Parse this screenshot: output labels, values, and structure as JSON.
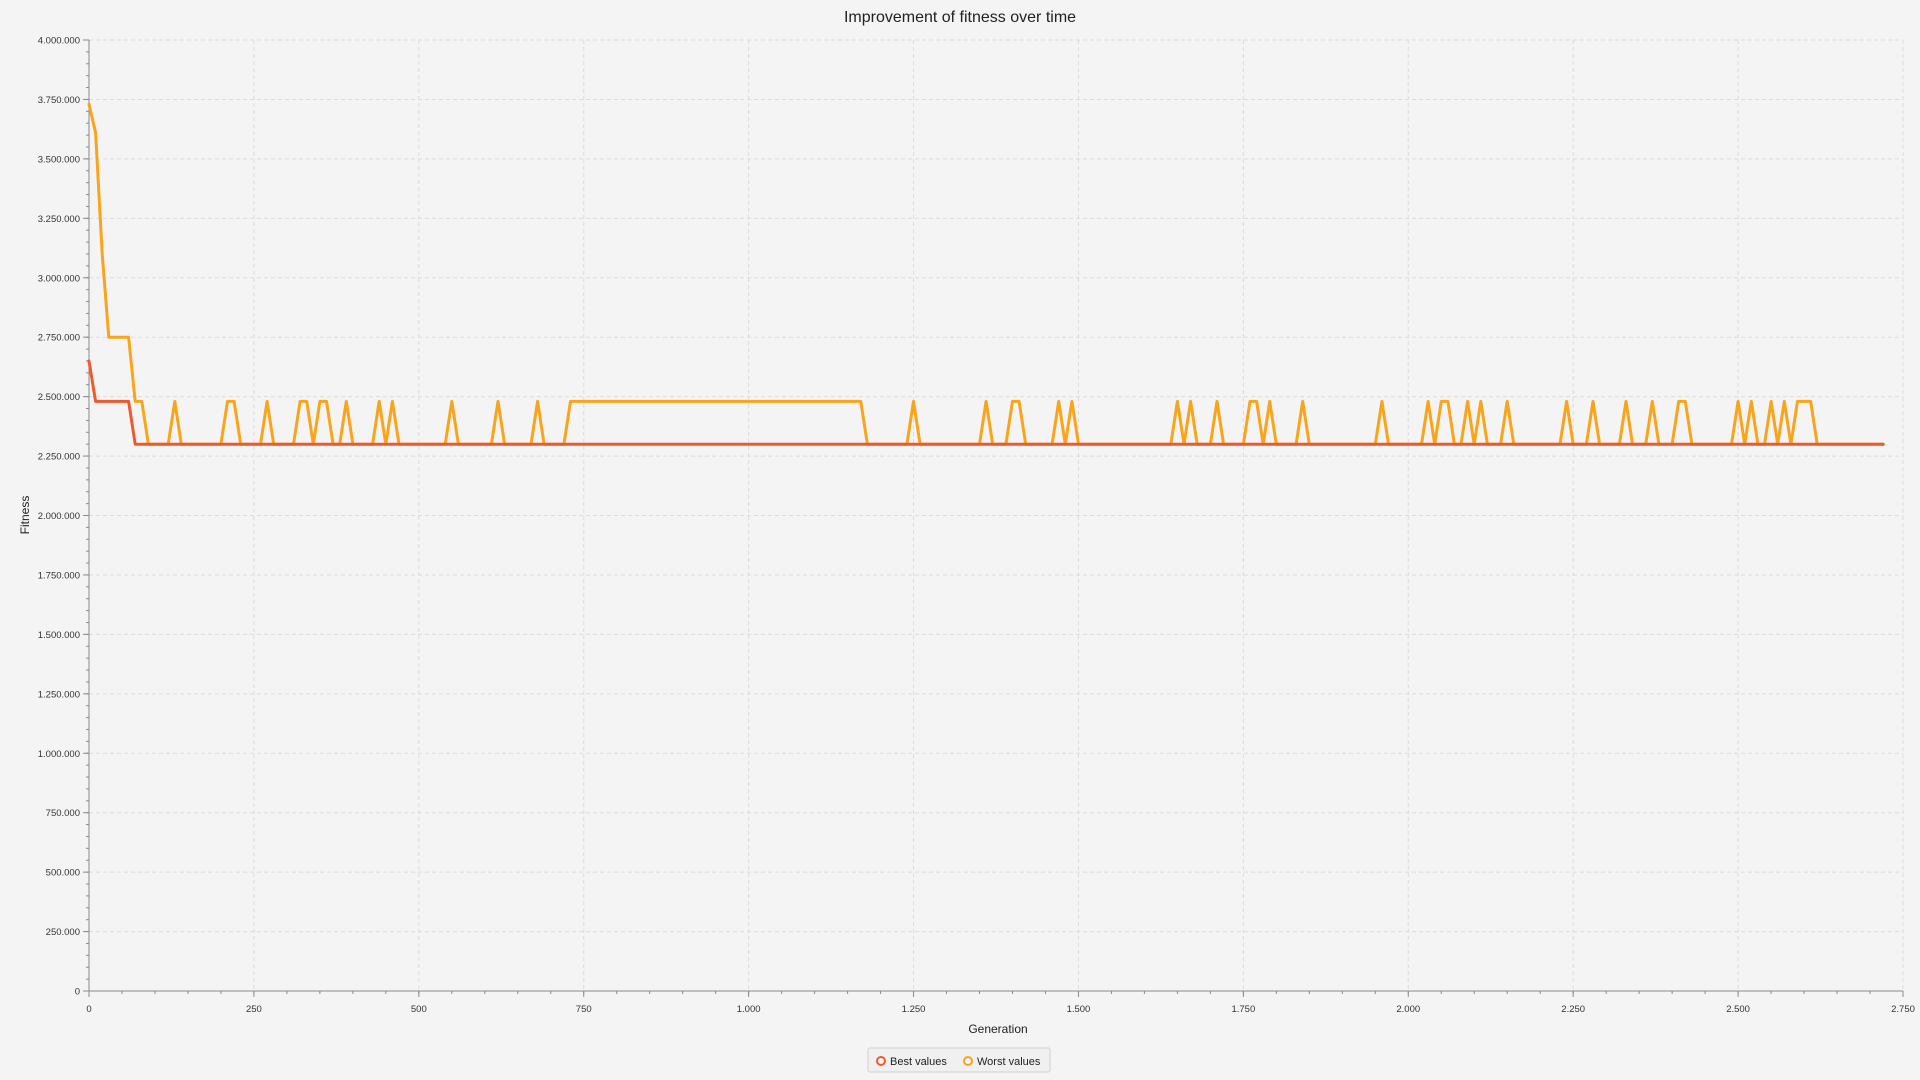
{
  "chart_data": {
    "type": "line",
    "title": "Improvement of fitness over time",
    "xlabel": "Generation",
    "ylabel": "Fitness",
    "xlim": [
      0,
      2750
    ],
    "ylim": [
      0,
      4000000
    ],
    "x_ticks": [
      "0",
      "250",
      "500",
      "750",
      "1.000",
      "1.250",
      "1.500",
      "1.750",
      "2.000",
      "2.250",
      "2.500",
      "2.750"
    ],
    "y_ticks": [
      "0",
      "250.000",
      "500.000",
      "750.000",
      "1.000.000",
      "1.250.000",
      "1.500.000",
      "1.750.000",
      "2.000.000",
      "2.250.000",
      "2.500.000",
      "2.750.000",
      "3.000.000",
      "3.250.000",
      "3.500.000",
      "3.750.000",
      "4.000.000"
    ],
    "grid": true,
    "legend_position": "bottom",
    "series": [
      {
        "name": "Best values",
        "color": "#ee5a2f",
        "x": [
          0,
          10,
          60,
          70,
          2720
        ],
        "y": [
          2650000,
          2480000,
          2480000,
          2300000,
          2300000
        ]
      },
      {
        "name": "Worst values",
        "color": "#f8a51c",
        "points": [
          [
            0,
            3730000
          ],
          [
            10,
            3610000
          ],
          [
            20,
            3100000
          ],
          [
            30,
            2750000
          ],
          [
            60,
            2750000
          ],
          [
            70,
            2480000
          ],
          [
            80,
            2480000
          ],
          [
            90,
            2300000
          ],
          [
            120,
            2300000
          ],
          [
            130,
            2480000
          ],
          [
            140,
            2300000
          ],
          [
            200,
            2300000
          ],
          [
            210,
            2480000
          ],
          [
            220,
            2480000
          ],
          [
            230,
            2300000
          ],
          [
            260,
            2300000
          ],
          [
            270,
            2480000
          ],
          [
            280,
            2300000
          ],
          [
            310,
            2300000
          ],
          [
            320,
            2480000
          ],
          [
            330,
            2480000
          ],
          [
            340,
            2300000
          ],
          [
            350,
            2480000
          ],
          [
            360,
            2480000
          ],
          [
            370,
            2300000
          ],
          [
            380,
            2300000
          ],
          [
            390,
            2480000
          ],
          [
            400,
            2300000
          ],
          [
            430,
            2300000
          ],
          [
            440,
            2480000
          ],
          [
            450,
            2300000
          ],
          [
            460,
            2480000
          ],
          [
            470,
            2300000
          ],
          [
            540,
            2300000
          ],
          [
            550,
            2480000
          ],
          [
            560,
            2300000
          ],
          [
            610,
            2300000
          ],
          [
            620,
            2480000
          ],
          [
            630,
            2300000
          ],
          [
            670,
            2300000
          ],
          [
            680,
            2480000
          ],
          [
            690,
            2300000
          ],
          [
            720,
            2300000
          ],
          [
            730,
            2480000
          ],
          [
            1170,
            2480000
          ],
          [
            1180,
            2300000
          ],
          [
            1240,
            2300000
          ],
          [
            1250,
            2480000
          ],
          [
            1260,
            2300000
          ],
          [
            1350,
            2300000
          ],
          [
            1360,
            2480000
          ],
          [
            1370,
            2300000
          ],
          [
            1390,
            2300000
          ],
          [
            1400,
            2480000
          ],
          [
            1410,
            2480000
          ],
          [
            1420,
            2300000
          ],
          [
            1460,
            2300000
          ],
          [
            1470,
            2480000
          ],
          [
            1480,
            2300000
          ],
          [
            1490,
            2480000
          ],
          [
            1500,
            2300000
          ],
          [
            1640,
            2300000
          ],
          [
            1650,
            2480000
          ],
          [
            1660,
            2300000
          ],
          [
            1670,
            2480000
          ],
          [
            1680,
            2300000
          ],
          [
            1700,
            2300000
          ],
          [
            1710,
            2480000
          ],
          [
            1720,
            2300000
          ],
          [
            1750,
            2300000
          ],
          [
            1760,
            2480000
          ],
          [
            1770,
            2480000
          ],
          [
            1780,
            2300000
          ],
          [
            1790,
            2480000
          ],
          [
            1800,
            2300000
          ],
          [
            1830,
            2300000
          ],
          [
            1840,
            2480000
          ],
          [
            1850,
            2300000
          ],
          [
            1950,
            2300000
          ],
          [
            1960,
            2480000
          ],
          [
            1970,
            2300000
          ],
          [
            2020,
            2300000
          ],
          [
            2030,
            2480000
          ],
          [
            2040,
            2300000
          ],
          [
            2050,
            2480000
          ],
          [
            2060,
            2480000
          ],
          [
            2070,
            2300000
          ],
          [
            2080,
            2300000
          ],
          [
            2090,
            2480000
          ],
          [
            2100,
            2300000
          ],
          [
            2110,
            2480000
          ],
          [
            2120,
            2300000
          ],
          [
            2140,
            2300000
          ],
          [
            2150,
            2480000
          ],
          [
            2160,
            2300000
          ],
          [
            2230,
            2300000
          ],
          [
            2240,
            2480000
          ],
          [
            2250,
            2300000
          ],
          [
            2270,
            2300000
          ],
          [
            2280,
            2480000
          ],
          [
            2290,
            2300000
          ],
          [
            2320,
            2300000
          ],
          [
            2330,
            2480000
          ],
          [
            2340,
            2300000
          ],
          [
            2360,
            2300000
          ],
          [
            2370,
            2480000
          ],
          [
            2380,
            2300000
          ],
          [
            2400,
            2300000
          ],
          [
            2410,
            2480000
          ],
          [
            2420,
            2480000
          ],
          [
            2430,
            2300000
          ],
          [
            2490,
            2300000
          ],
          [
            2500,
            2480000
          ],
          [
            2510,
            2300000
          ],
          [
            2520,
            2480000
          ],
          [
            2530,
            2300000
          ],
          [
            2540,
            2300000
          ],
          [
            2550,
            2480000
          ],
          [
            2560,
            2300000
          ],
          [
            2570,
            2480000
          ],
          [
            2580,
            2300000
          ],
          [
            2590,
            2480000
          ],
          [
            2610,
            2480000
          ],
          [
            2620,
            2300000
          ],
          [
            2720,
            2300000
          ]
        ]
      }
    ]
  }
}
